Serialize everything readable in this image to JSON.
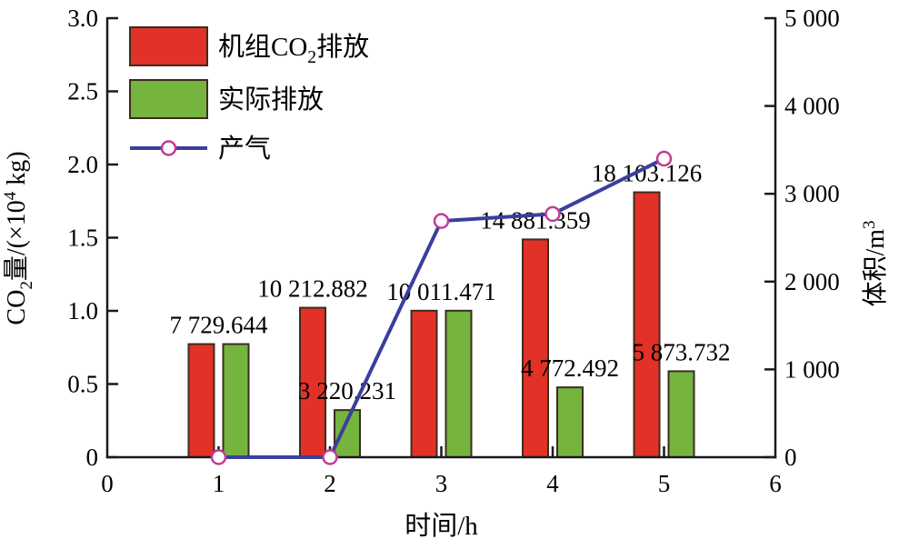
{
  "colors": {
    "unit_bar": "#e23228",
    "actual_bar": "#75b43f",
    "bar_border": "#3d2b1f",
    "line": "#3a3f9e",
    "marker": "#c23b96",
    "axis": "#1a1a1a",
    "text": "#000000",
    "background": "#ffffff"
  },
  "chart_data": {
    "type": "bar+line",
    "x": [
      1,
      2,
      3,
      4,
      5
    ],
    "series": [
      {
        "name": "机组CO₂排放",
        "type": "bar",
        "axis": "left",
        "unit": "kg",
        "values": [
          7729.644,
          10212.882,
          10011.471,
          14881.359,
          18103.126
        ]
      },
      {
        "name": "实际排放",
        "type": "bar",
        "axis": "left",
        "unit": "kg",
        "values": [
          7729.644,
          3220.231,
          10011.471,
          4772.492,
          5873.732
        ]
      },
      {
        "name": "产气",
        "type": "line",
        "axis": "right",
        "unit": "m³",
        "values": [
          0,
          0,
          2690,
          2770,
          3400
        ]
      }
    ],
    "bar_labels": [
      {
        "x": 1,
        "target": "pair",
        "text": "7 729.644"
      },
      {
        "x": 2,
        "target": "unit",
        "text": "10 212.882"
      },
      {
        "x": 2,
        "target": "actual",
        "text": "3 220.231"
      },
      {
        "x": 3,
        "target": "pair",
        "text": "10 011.471"
      },
      {
        "x": 4,
        "target": "unit",
        "text": "14 881.359"
      },
      {
        "x": 4,
        "target": "actual",
        "text": "4 772.492"
      },
      {
        "x": 5,
        "target": "unit",
        "text": "18 103.126"
      },
      {
        "x": 5,
        "target": "actual",
        "text": "5 873.732"
      }
    ],
    "xlabel": "时间/h",
    "ylabel_left": "CO₂量/(×10⁴ kg)",
    "ylabel_left_parts": [
      {
        "t": "CO"
      },
      {
        "t": "2",
        "sub": true
      },
      {
        "t": "量/(×10"
      },
      {
        "t": "4",
        "sup": true
      },
      {
        "t": " kg)"
      }
    ],
    "ylabel_right": "体积/m³",
    "ylabel_right_parts": [
      {
        "t": "体积/m"
      },
      {
        "t": "3",
        "sup": true
      }
    ],
    "xlim": [
      0,
      6
    ],
    "xticks": [
      "0",
      "1",
      "2",
      "3",
      "4",
      "5",
      "6"
    ],
    "ylim_left": [
      0,
      3.0
    ],
    "yticks_left": [
      "3.0",
      "2.5",
      "2.0",
      "1.5",
      "1.0",
      "0.5",
      "0"
    ],
    "ylim_right": [
      0,
      5000
    ],
    "yticks_right": [
      "5 000",
      "4 000",
      "3 000",
      "2 000",
      "1 000",
      "0"
    ],
    "grid": false,
    "legend_position": "top-left",
    "legend": [
      {
        "name": "unit-co2-emission",
        "swatch": "bar-red",
        "label": "机组CO₂排放",
        "label_parts": [
          {
            "t": "机组CO"
          },
          {
            "t": "2",
            "sub": true
          },
          {
            "t": "排放"
          }
        ]
      },
      {
        "name": "actual-emission",
        "swatch": "bar-green",
        "label": "实际排放",
        "label_parts": [
          {
            "t": "实际排放"
          }
        ]
      },
      {
        "name": "gas-production",
        "swatch": "line",
        "label": "产气",
        "label_parts": [
          {
            "t": "产气"
          }
        ]
      }
    ]
  }
}
